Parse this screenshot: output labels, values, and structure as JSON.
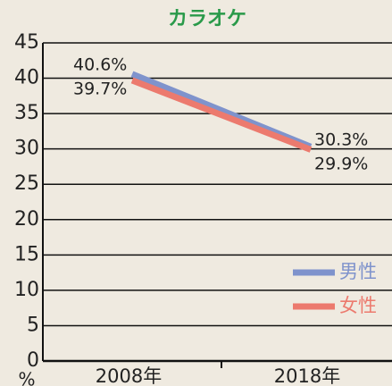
{
  "chart_data": {
    "type": "line",
    "title": "カラオケ",
    "categories": [
      "2008年",
      "2018年"
    ],
    "series": [
      {
        "name": "男性",
        "color": "#7f93cc",
        "values": [
          40.6,
          30.3
        ],
        "value_labels": [
          "40.6%",
          "30.3%"
        ]
      },
      {
        "name": "女性",
        "color": "#ec7a6e",
        "values": [
          39.7,
          29.9
        ],
        "value_labels": [
          "39.7%",
          "29.9%"
        ]
      }
    ],
    "ylim": [
      0,
      45
    ],
    "yticks": [
      0,
      5,
      10,
      15,
      20,
      25,
      30,
      35,
      40,
      45
    ],
    "y_unit": "%",
    "grid": true,
    "legend": "lower right",
    "title_color": "#2a9a4a"
  }
}
